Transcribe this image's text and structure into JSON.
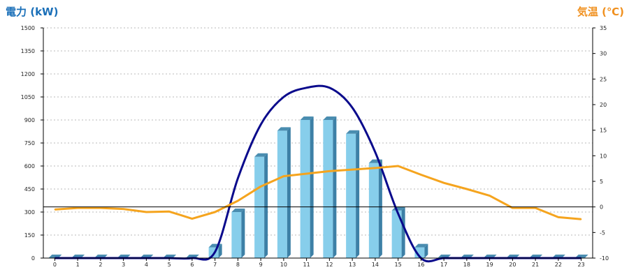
{
  "chart_data": {
    "type": "bar",
    "y_left_label": "電力 (kW)",
    "y_right_label": "気温 (℃)",
    "categories": [
      "0",
      "1",
      "2",
      "3",
      "4",
      "5",
      "6",
      "7",
      "8",
      "9",
      "10",
      "11",
      "12",
      "13",
      "14",
      "15",
      "16",
      "17",
      "18",
      "19",
      "20",
      "21",
      "22",
      "23"
    ],
    "y_left_ticks": [
      0,
      150,
      300,
      450,
      600,
      750,
      900,
      1050,
      1200,
      1350,
      1500
    ],
    "y_right_ticks": [
      -10,
      -5,
      0,
      5,
      10,
      15,
      20,
      25,
      30,
      35
    ],
    "y_left_range": [
      0,
      1500
    ],
    "y_right_range": [
      -10,
      35
    ],
    "grid": "horizontal dotted",
    "series": [
      {
        "kind": "bar",
        "axis": "left",
        "values": [
          0,
          0,
          0,
          0,
          0,
          0,
          0,
          70,
          300,
          660,
          830,
          900,
          900,
          810,
          620,
          310,
          70,
          0,
          0,
          0,
          0,
          0,
          0,
          0
        ],
        "color": "#87ceeb"
      },
      {
        "kind": "line",
        "axis": "left",
        "values": [
          0,
          0,
          0,
          0,
          0,
          0,
          0,
          40,
          520,
          870,
          1050,
          1110,
          1110,
          980,
          690,
          290,
          0,
          0,
          0,
          0,
          0,
          0,
          0,
          0
        ],
        "color": "#0a0a8c"
      },
      {
        "kind": "line",
        "axis": "right",
        "values": [
          -0.5,
          -0.2,
          -0.2,
          -0.4,
          -1.0,
          -0.9,
          -2.3,
          -1.0,
          1.2,
          4.0,
          6.0,
          6.5,
          7.0,
          7.3,
          7.6,
          8.0,
          6.3,
          4.7,
          3.5,
          2.2,
          -0.2,
          -0.2,
          -2.0,
          -2.4
        ],
        "color": "#f5a41e"
      }
    ],
    "reference_line": {
      "axis": "right",
      "value": 0,
      "color": "#000000"
    }
  }
}
